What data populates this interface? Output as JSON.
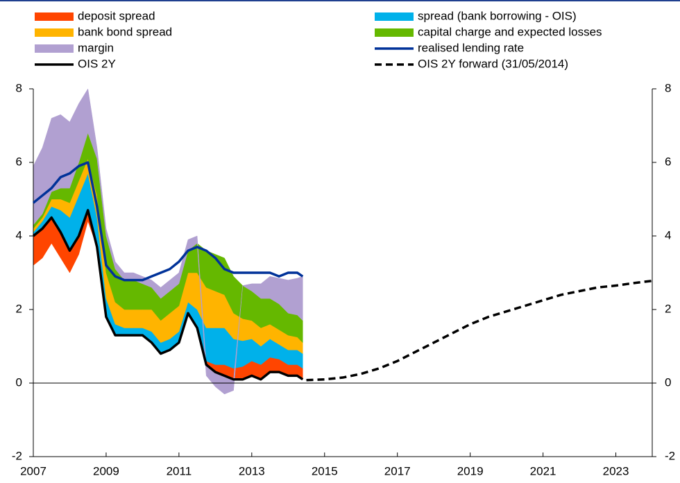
{
  "chart_data": {
    "type": "stacked-area-line",
    "x": [
      2007,
      2007.25,
      2007.5,
      2007.75,
      2008,
      2008.25,
      2008.5,
      2008.75,
      2009,
      2009.25,
      2009.5,
      2009.75,
      2010,
      2010.25,
      2010.5,
      2010.75,
      2011,
      2011.25,
      2011.5,
      2011.75,
      2012,
      2012.25,
      2012.5,
      2012.75,
      2013,
      2013.25,
      2013.5,
      2013.75,
      2014,
      2014.25,
      2014.4
    ],
    "series": [
      {
        "name": "deposit spread",
        "type": "area",
        "color": "#ff4500",
        "values": [
          -0.8,
          -0.8,
          -0.7,
          -0.7,
          -0.6,
          -0.5,
          -0.3,
          0.0,
          0.0,
          0.0,
          0.0,
          0.0,
          0.0,
          0.0,
          0.0,
          0.0,
          0.0,
          0.0,
          0.0,
          0.1,
          0.2,
          0.3,
          0.3,
          0.35,
          0.4,
          0.4,
          0.4,
          0.35,
          0.3,
          0.3,
          0.3
        ]
      },
      {
        "name": "spread (bank borrowing - OIS)",
        "type": "area",
        "color": "#00b1ea",
        "values": [
          0.1,
          0.2,
          0.3,
          0.6,
          0.9,
          1.1,
          1.0,
          0.8,
          0.5,
          0.3,
          0.2,
          0.2,
          0.2,
          0.3,
          0.3,
          0.3,
          0.3,
          0.3,
          0.5,
          0.9,
          1.0,
          1.0,
          0.8,
          0.7,
          0.6,
          0.5,
          0.5,
          0.4,
          0.4,
          0.4,
          0.4
        ]
      },
      {
        "name": "bank bond spread",
        "type": "area",
        "color": "#ffb400",
        "values": [
          0.1,
          0.1,
          0.2,
          0.3,
          0.4,
          0.4,
          0.4,
          0.6,
          0.7,
          0.6,
          0.5,
          0.5,
          0.5,
          0.6,
          0.6,
          0.7,
          0.7,
          0.8,
          1.0,
          1.1,
          1.0,
          0.9,
          0.7,
          0.6,
          0.5,
          0.5,
          0.4,
          0.4,
          0.4,
          0.35,
          0.3
        ]
      },
      {
        "name": "capital charge and expected losses",
        "type": "area",
        "color": "#65b800",
        "values": [
          0.1,
          0.1,
          0.2,
          0.3,
          0.4,
          0.5,
          0.7,
          1.0,
          1.0,
          0.9,
          0.8,
          0.8,
          0.7,
          0.6,
          0.6,
          0.6,
          0.6,
          0.6,
          0.8,
          1.0,
          1.0,
          1.0,
          1.0,
          0.9,
          0.8,
          0.8,
          0.7,
          0.7,
          0.6,
          0.6,
          0.6
        ]
      },
      {
        "name": "margin",
        "type": "area",
        "color": "#b1a0d1",
        "values": [
          1.6,
          1.8,
          2.0,
          2.0,
          1.8,
          1.6,
          1.2,
          0.3,
          0.2,
          0.2,
          0.2,
          0.2,
          0.2,
          0.2,
          0.3,
          0.3,
          0.3,
          0.3,
          0.2,
          -0.3,
          -0.4,
          -0.5,
          -0.3,
          0.0,
          0.2,
          0.4,
          0.6,
          0.7,
          0.9,
          1.0,
          1.2
        ]
      },
      {
        "name": "realised lending rate",
        "type": "line",
        "color": "#003299",
        "values": [
          4.9,
          5.1,
          5.3,
          5.6,
          5.7,
          5.9,
          6.0,
          4.8,
          3.2,
          2.9,
          2.8,
          2.8,
          2.8,
          2.9,
          3.0,
          3.1,
          3.3,
          3.6,
          3.7,
          3.6,
          3.4,
          3.1,
          3.0,
          3.0,
          3.0,
          3.0,
          3.0,
          2.9,
          3.0,
          3.0,
          2.9
        ]
      },
      {
        "name": "OIS 2Y",
        "type": "line",
        "base": true,
        "color": "#000000",
        "values": [
          4.0,
          4.2,
          4.5,
          4.1,
          3.6,
          4.0,
          4.7,
          3.7,
          1.8,
          1.3,
          1.3,
          1.3,
          1.3,
          1.1,
          0.8,
          0.9,
          1.1,
          1.9,
          1.5,
          0.5,
          0.3,
          0.2,
          0.1,
          0.1,
          0.2,
          0.1,
          0.3,
          0.3,
          0.2,
          0.2,
          0.1
        ]
      },
      {
        "name": "OIS 2Y forward (31/05/2014)",
        "type": "line",
        "dashed": true,
        "color": "#000000",
        "x": [
          2014.5,
          2015,
          2015.5,
          2016,
          2016.5,
          2017,
          2017.5,
          2018,
          2018.5,
          2019,
          2019.5,
          2020,
          2020.5,
          2021,
          2021.5,
          2022,
          2022.5,
          2023,
          2023.5,
          2024
        ],
        "values": [
          0.08,
          0.1,
          0.15,
          0.25,
          0.4,
          0.6,
          0.85,
          1.1,
          1.35,
          1.6,
          1.8,
          1.95,
          2.1,
          2.25,
          2.4,
          2.5,
          2.6,
          2.65,
          2.72,
          2.78
        ]
      }
    ],
    "legend_order": [
      0,
      1,
      2,
      3,
      4,
      5,
      6,
      7
    ],
    "xlim": [
      2007,
      2024
    ],
    "xticks": [
      2007,
      2009,
      2011,
      2013,
      2015,
      2017,
      2019,
      2021,
      2023
    ],
    "ylim": [
      -2,
      8
    ],
    "yticks": [
      8,
      6,
      4,
      2,
      0,
      -2
    ]
  }
}
